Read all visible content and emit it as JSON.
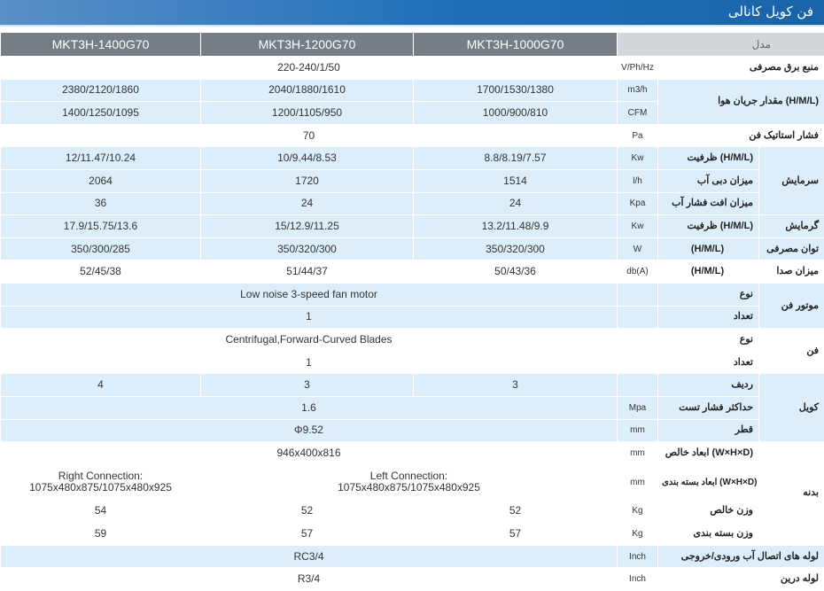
{
  "header": {
    "title": "فن کویل کانالی"
  },
  "table": {
    "model_label": "مدل",
    "models": [
      "MKT3H-1400G70",
      "MKT3H-1200G70",
      "MKT3H-1000G70"
    ],
    "power_supply": {
      "label": "منبع برق مصرفی",
      "unit": "V/Ph/Hz",
      "value": "220-240/1/50"
    },
    "airflow": {
      "label": "مقدار جریان هوا (H/M/L)",
      "unit1": "m3/h",
      "values1": [
        "2380/2120/1860",
        "2040/1880/1610",
        "1700/1530/1380"
      ],
      "unit2": "CFM",
      "values2": [
        "1400/1250/1095",
        "1200/1105/950",
        "1000/900/810"
      ]
    },
    "static_pressure": {
      "label": "فشار استاتیک فن",
      "unit": "Pa",
      "value": "70"
    },
    "cooling": {
      "group": "سرمایش",
      "capacity": {
        "label": "ظرفیت (H/M/L)",
        "unit": "Kw",
        "values": [
          "12/11.47/10.24",
          "10/9.44/8.53",
          "8.8/8.19/7.57"
        ]
      },
      "water_flow": {
        "label": "میزان دبی آب",
        "unit": "l/h",
        "values": [
          "2064",
          "1720",
          "1514"
        ]
      },
      "pressure_drop": {
        "label": "میزان افت فشار آب",
        "unit": "Kpa",
        "values": [
          "36",
          "24",
          "24"
        ]
      }
    },
    "heating": {
      "group": "گرمایش",
      "label": "ظرفیت (H/M/L)",
      "unit": "Kw",
      "values": [
        "17.9/15.75/13.6",
        "15/12.9/11.25",
        "13.2/11.48/9.9"
      ]
    },
    "power_input": {
      "group": "توان مصرفی",
      "label": "(H/M/L)",
      "unit": "W",
      "values": [
        "350/300/285",
        "350/320/300",
        "350/320/300"
      ]
    },
    "noise": {
      "group": "میزان صدا",
      "label": "(H/M/L)",
      "unit": "db(A)",
      "values": [
        "52/45/38",
        "51/44/37",
        "50/43/36"
      ]
    },
    "fan_motor": {
      "group": "موتور فن",
      "type_label": "نوع",
      "type_value": "Low noise 3-speed fan motor",
      "qty_label": "تعداد",
      "qty_value": "1"
    },
    "fan": {
      "group": "فن",
      "type_label": "نوع",
      "type_value": "Centrifugal,Forward-Curved Blades",
      "qty_label": "تعداد",
      "qty_value": "1"
    },
    "coil": {
      "group": "کویل",
      "rows_label": "ردیف",
      "rows_values": [
        "4",
        "3",
        "3"
      ],
      "test_pressure": {
        "label": "حداکثر فشار تست",
        "unit": "Mpa",
        "value": "1.6"
      },
      "diameter": {
        "label": "قطر",
        "unit": "mm",
        "value": "Φ9.52"
      }
    },
    "body": {
      "group": "بدنه",
      "net_dim": {
        "label": "ابعاد خالص (W×H×D)",
        "unit": "mm",
        "value": "946x400x816"
      },
      "pack_dim": {
        "label": "ابعاد بسته بندی (W×H×D)",
        "unit": "mm",
        "value_right_1": "Right Connection:",
        "value_right_2": "1075x480x875/1075x480x925",
        "value_left_1": "Left Connection:",
        "value_left_2": "1075x480x875/1075x480x925"
      },
      "net_weight": {
        "label": "وزن خالص",
        "unit": "Kg",
        "values": [
          "54",
          "52",
          "52"
        ]
      },
      "gross_weight": {
        "label": "وزن بسته بندی",
        "unit": "Kg",
        "values": [
          "59",
          "57",
          "57"
        ]
      }
    },
    "water_pipe": {
      "label": "لوله های اتصال آب ورودی/خروجی",
      "unit": "Inch",
      "value": "RC3/4"
    },
    "drain_pipe": {
      "label": "لوله درین",
      "unit": "Inch",
      "value": "R3/4"
    }
  }
}
